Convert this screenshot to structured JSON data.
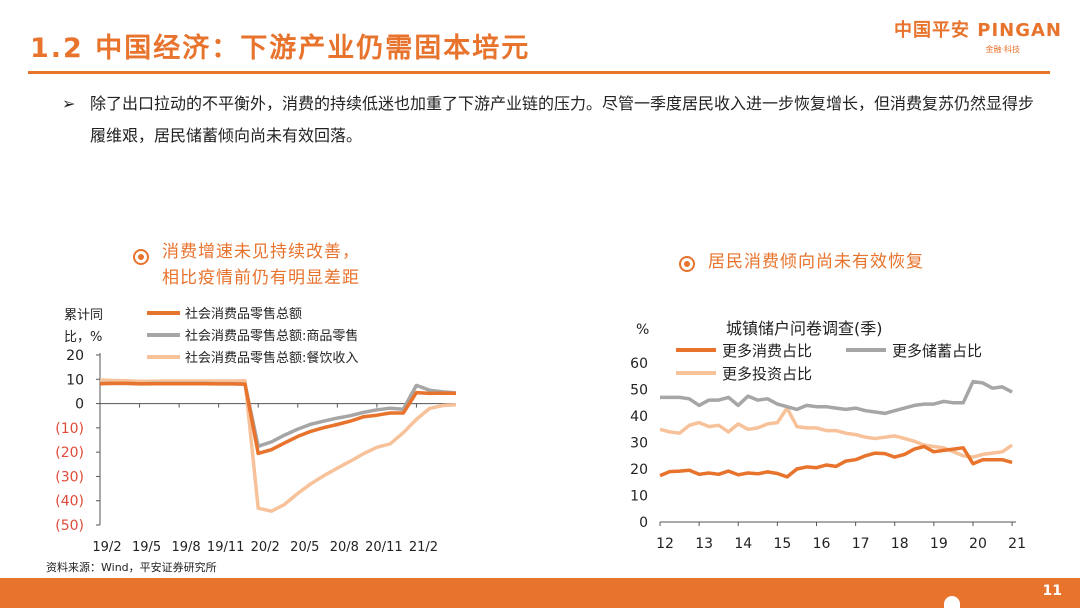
{
  "header": {
    "title": "1.2 中国经济：下游产业仍需固本培元",
    "logo_text": "中国平安 PINGAN",
    "logo_sub": "金融·科技"
  },
  "bullet": {
    "mark": "➢",
    "text": "除了出口拉动的不平衡外，消费的持续低迷也加重了下游产业链的压力。尽管一季度居民收入进一步恢复增长，但消费复苏仍然显得步履维艰，居民储蓄倾向尚未有效回落。"
  },
  "left_note": {
    "line1": "消费增速未见持续改善，",
    "line2": "相比疫情前仍有明显差距"
  },
  "right_note": {
    "text": "居民消费倾向尚未有效恢复"
  },
  "colors": {
    "accent": "#e8732c",
    "series_total": "#e8732c",
    "series_goods": "#a6a6a6",
    "series_catering": "#f7c29a",
    "neg_tick": "#e04a3a"
  },
  "chart_data": [
    {
      "type": "line",
      "title": "",
      "ylabel_line1": "累计同",
      "ylabel_line2": "比，%",
      "ylim": [
        -50,
        20
      ],
      "yticks": [
        20,
        10,
        0,
        -10,
        -20,
        -30,
        -40,
        -50
      ],
      "ytick_labels": [
        "20",
        "10",
        "0",
        "(10)",
        "(20)",
        "(30)",
        "(40)",
        "(50)"
      ],
      "xtick_labels": [
        "19/2",
        "19/5",
        "19/8",
        "19/11",
        "20/2",
        "20/5",
        "20/8",
        "20/11",
        "21/2"
      ],
      "x_start_month_index": 0,
      "x_end_month_index": 27,
      "series": [
        {
          "name": "社会消费品零售总额",
          "color": "#e8732c",
          "points": [
            [
              0,
              8.2
            ],
            [
              1,
              8.3
            ],
            [
              2,
              8.3
            ],
            [
              3,
              8.1
            ],
            [
              4,
              8.2
            ],
            [
              5,
              8.2
            ],
            [
              6,
              8.2
            ],
            [
              7,
              8.2
            ],
            [
              8,
              8.2
            ],
            [
              9,
              8.1
            ],
            [
              10,
              8.1
            ],
            [
              11,
              8.0
            ],
            [
              12,
              -20.5
            ],
            [
              13,
              -19.0
            ],
            [
              14,
              -16.2
            ],
            [
              15,
              -13.5
            ],
            [
              16,
              -11.4
            ],
            [
              17,
              -9.9
            ],
            [
              18,
              -8.6
            ],
            [
              19,
              -7.2
            ],
            [
              20,
              -5.4
            ],
            [
              21,
              -4.8
            ],
            [
              22,
              -3.9
            ],
            [
              23,
              -3.9
            ],
            [
              24,
              4.5
            ],
            [
              25,
              4.2
            ],
            [
              26,
              4.3
            ],
            [
              27,
              4.2
            ]
          ]
        },
        {
          "name": "社会消费品零售总额:商品零售",
          "color": "#a6a6a6",
          "points": [
            [
              0,
              8.3
            ],
            [
              1,
              8.3
            ],
            [
              2,
              8.3
            ],
            [
              3,
              8.2
            ],
            [
              4,
              8.3
            ],
            [
              5,
              8.3
            ],
            [
              6,
              8.3
            ],
            [
              7,
              8.3
            ],
            [
              8,
              8.3
            ],
            [
              9,
              8.2
            ],
            [
              10,
              8.2
            ],
            [
              11,
              8.0
            ],
            [
              12,
              -17.6
            ],
            [
              13,
              -15.8
            ],
            [
              14,
              -13.0
            ],
            [
              15,
              -10.5
            ],
            [
              16,
              -8.5
            ],
            [
              17,
              -7.2
            ],
            [
              18,
              -6.0
            ],
            [
              19,
              -5.0
            ],
            [
              20,
              -3.6
            ],
            [
              21,
              -2.6
            ],
            [
              22,
              -1.9
            ],
            [
              23,
              -2.3
            ],
            [
              24,
              7.5
            ],
            [
              25,
              5.5
            ],
            [
              26,
              4.8
            ],
            [
              27,
              4.4
            ]
          ]
        },
        {
          "name": "社会消费品零售总额:餐饮收入",
          "color": "#f7c29a",
          "points": [
            [
              0,
              9.7
            ],
            [
              1,
              9.5
            ],
            [
              2,
              9.4
            ],
            [
              3,
              9.2
            ],
            [
              4,
              9.2
            ],
            [
              5,
              9.3
            ],
            [
              6,
              9.3
            ],
            [
              7,
              9.3
            ],
            [
              8,
              9.3
            ],
            [
              9,
              9.3
            ],
            [
              10,
              9.3
            ],
            [
              11,
              9.4
            ],
            [
              12,
              -43.1
            ],
            [
              13,
              -44.3
            ],
            [
              14,
              -41.5
            ],
            [
              15,
              -37.0
            ],
            [
              16,
              -33.0
            ],
            [
              17,
              -29.6
            ],
            [
              18,
              -26.6
            ],
            [
              19,
              -23.7
            ],
            [
              20,
              -20.6
            ],
            [
              21,
              -18.0
            ],
            [
              22,
              -16.6
            ],
            [
              23,
              -12.0
            ],
            [
              24,
              -6.5
            ],
            [
              25,
              -2.0
            ],
            [
              26,
              -0.8
            ],
            [
              27,
              -0.5
            ]
          ]
        }
      ]
    },
    {
      "type": "line",
      "title": "城镇储户问卷调查(季)",
      "ylabel": "%",
      "ylim": [
        0,
        60
      ],
      "yticks": [
        60,
        50,
        40,
        30,
        20,
        10,
        0
      ],
      "ytick_labels": [
        "60",
        "50",
        "40",
        "30",
        "20",
        "10",
        "0"
      ],
      "xtick_labels": [
        "12",
        "13",
        "14",
        "15",
        "16",
        "17",
        "18",
        "19",
        "20",
        "21"
      ],
      "x_range": [
        2012,
        2021.1
      ],
      "series": [
        {
          "name": "更多消费占比",
          "color": "#e8732c",
          "points": [
            [
              2012.0,
              17.5
            ],
            [
              2012.25,
              19.0
            ],
            [
              2012.5,
              19.2
            ],
            [
              2012.75,
              19.5
            ],
            [
              2013.0,
              18.0
            ],
            [
              2013.25,
              18.5
            ],
            [
              2013.5,
              18.0
            ],
            [
              2013.75,
              19.2
            ],
            [
              2014.0,
              17.8
            ],
            [
              2014.25,
              18.5
            ],
            [
              2014.5,
              18.2
            ],
            [
              2014.75,
              18.9
            ],
            [
              2015.0,
              18.3
            ],
            [
              2015.25,
              17.0
            ],
            [
              2015.5,
              20.0
            ],
            [
              2015.75,
              20.8
            ],
            [
              2016.0,
              20.5
            ],
            [
              2016.25,
              21.5
            ],
            [
              2016.5,
              21.0
            ],
            [
              2016.75,
              23.0
            ],
            [
              2017.0,
              23.5
            ],
            [
              2017.25,
              25.0
            ],
            [
              2017.5,
              26.0
            ],
            [
              2017.75,
              25.8
            ],
            [
              2018.0,
              24.5
            ],
            [
              2018.25,
              25.5
            ],
            [
              2018.5,
              27.5
            ],
            [
              2018.75,
              28.5
            ],
            [
              2019.0,
              26.5
            ],
            [
              2019.25,
              27.0
            ],
            [
              2019.5,
              27.5
            ],
            [
              2019.75,
              28.0
            ],
            [
              2020.0,
              22.0
            ],
            [
              2020.25,
              23.5
            ],
            [
              2020.5,
              23.5
            ],
            [
              2020.75,
              23.5
            ],
            [
              2021.0,
              22.5
            ]
          ]
        },
        {
          "name": "更多储蓄占比",
          "color": "#a6a6a6",
          "points": [
            [
              2012.0,
              47.0
            ],
            [
              2012.25,
              47.0
            ],
            [
              2012.5,
              47.0
            ],
            [
              2012.75,
              46.5
            ],
            [
              2013.0,
              44.0
            ],
            [
              2013.25,
              46.0
            ],
            [
              2013.5,
              46.0
            ],
            [
              2013.75,
              47.0
            ],
            [
              2014.0,
              44.0
            ],
            [
              2014.25,
              47.5
            ],
            [
              2014.5,
              46.0
            ],
            [
              2014.75,
              46.5
            ],
            [
              2015.0,
              44.5
            ],
            [
              2015.25,
              43.5
            ],
            [
              2015.5,
              42.5
            ],
            [
              2015.75,
              44.0
            ],
            [
              2016.0,
              43.5
            ],
            [
              2016.25,
              43.5
            ],
            [
              2016.5,
              43.0
            ],
            [
              2016.75,
              42.5
            ],
            [
              2017.0,
              43.0
            ],
            [
              2017.25,
              42.0
            ],
            [
              2017.5,
              41.5
            ],
            [
              2017.75,
              41.0
            ],
            [
              2018.0,
              42.0
            ],
            [
              2018.25,
              43.0
            ],
            [
              2018.5,
              44.0
            ],
            [
              2018.75,
              44.5
            ],
            [
              2019.0,
              44.5
            ],
            [
              2019.25,
              45.5
            ],
            [
              2019.5,
              45.0
            ],
            [
              2019.75,
              45.0
            ],
            [
              2020.0,
              53.0
            ],
            [
              2020.25,
              52.5
            ],
            [
              2020.5,
              50.5
            ],
            [
              2020.75,
              51.0
            ],
            [
              2021.0,
              49.0
            ]
          ]
        },
        {
          "name": "更多投资占比",
          "color": "#f7c29a",
          "points": [
            [
              2012.0,
              35.0
            ],
            [
              2012.25,
              34.0
            ],
            [
              2012.5,
              33.5
            ],
            [
              2012.75,
              36.5
            ],
            [
              2013.0,
              37.5
            ],
            [
              2013.25,
              36.0
            ],
            [
              2013.5,
              36.5
            ],
            [
              2013.75,
              34.0
            ],
            [
              2014.0,
              37.0
            ],
            [
              2014.25,
              35.0
            ],
            [
              2014.5,
              35.5
            ],
            [
              2014.75,
              37.0
            ],
            [
              2015.0,
              37.5
            ],
            [
              2015.25,
              43.0
            ],
            [
              2015.5,
              36.0
            ],
            [
              2015.75,
              35.5
            ],
            [
              2016.0,
              35.5
            ],
            [
              2016.25,
              34.5
            ],
            [
              2016.5,
              34.5
            ],
            [
              2016.75,
              33.5
            ],
            [
              2017.0,
              33.0
            ],
            [
              2017.25,
              32.0
            ],
            [
              2017.5,
              31.5
            ],
            [
              2017.75,
              32.0
            ],
            [
              2018.0,
              32.5
            ],
            [
              2018.25,
              31.5
            ],
            [
              2018.5,
              30.5
            ],
            [
              2018.75,
              29.0
            ],
            [
              2019.0,
              28.5
            ],
            [
              2019.25,
              28.0
            ],
            [
              2019.5,
              26.5
            ],
            [
              2019.75,
              25.0
            ],
            [
              2020.0,
              24.5
            ],
            [
              2020.25,
              25.5
            ],
            [
              2020.5,
              26.0
            ],
            [
              2020.75,
              26.5
            ],
            [
              2021.0,
              29.0
            ]
          ]
        }
      ]
    }
  ],
  "source": "资料来源：Wind，平安证券研究所",
  "footer": {
    "page_number": "11"
  }
}
